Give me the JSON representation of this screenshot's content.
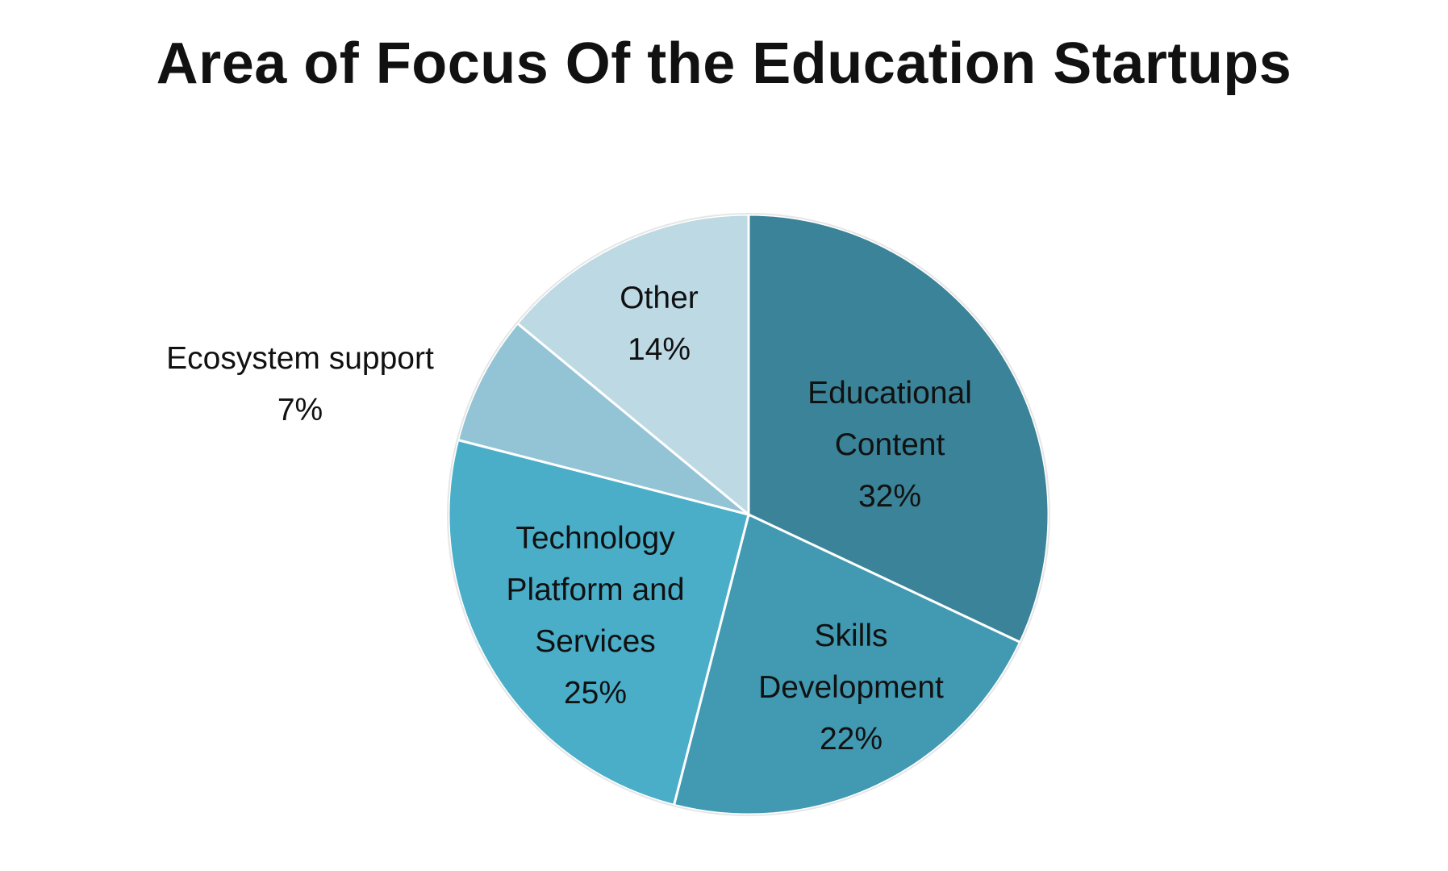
{
  "chart_data": {
    "type": "pie",
    "title": "Area of Focus Of the Education Startups",
    "categories": [
      "Educational Content",
      "Skills Development",
      "Technology Platform and Services",
      "Ecosystem support",
      "Other"
    ],
    "values": [
      32,
      22,
      25,
      7,
      14
    ],
    "value_labels": [
      "32%",
      "22%",
      "25%",
      "7%",
      "14%"
    ],
    "colors": [
      "#3a8398",
      "#4199b2",
      "#4aaec9",
      "#93c4d6",
      "#bcd9e4"
    ]
  }
}
